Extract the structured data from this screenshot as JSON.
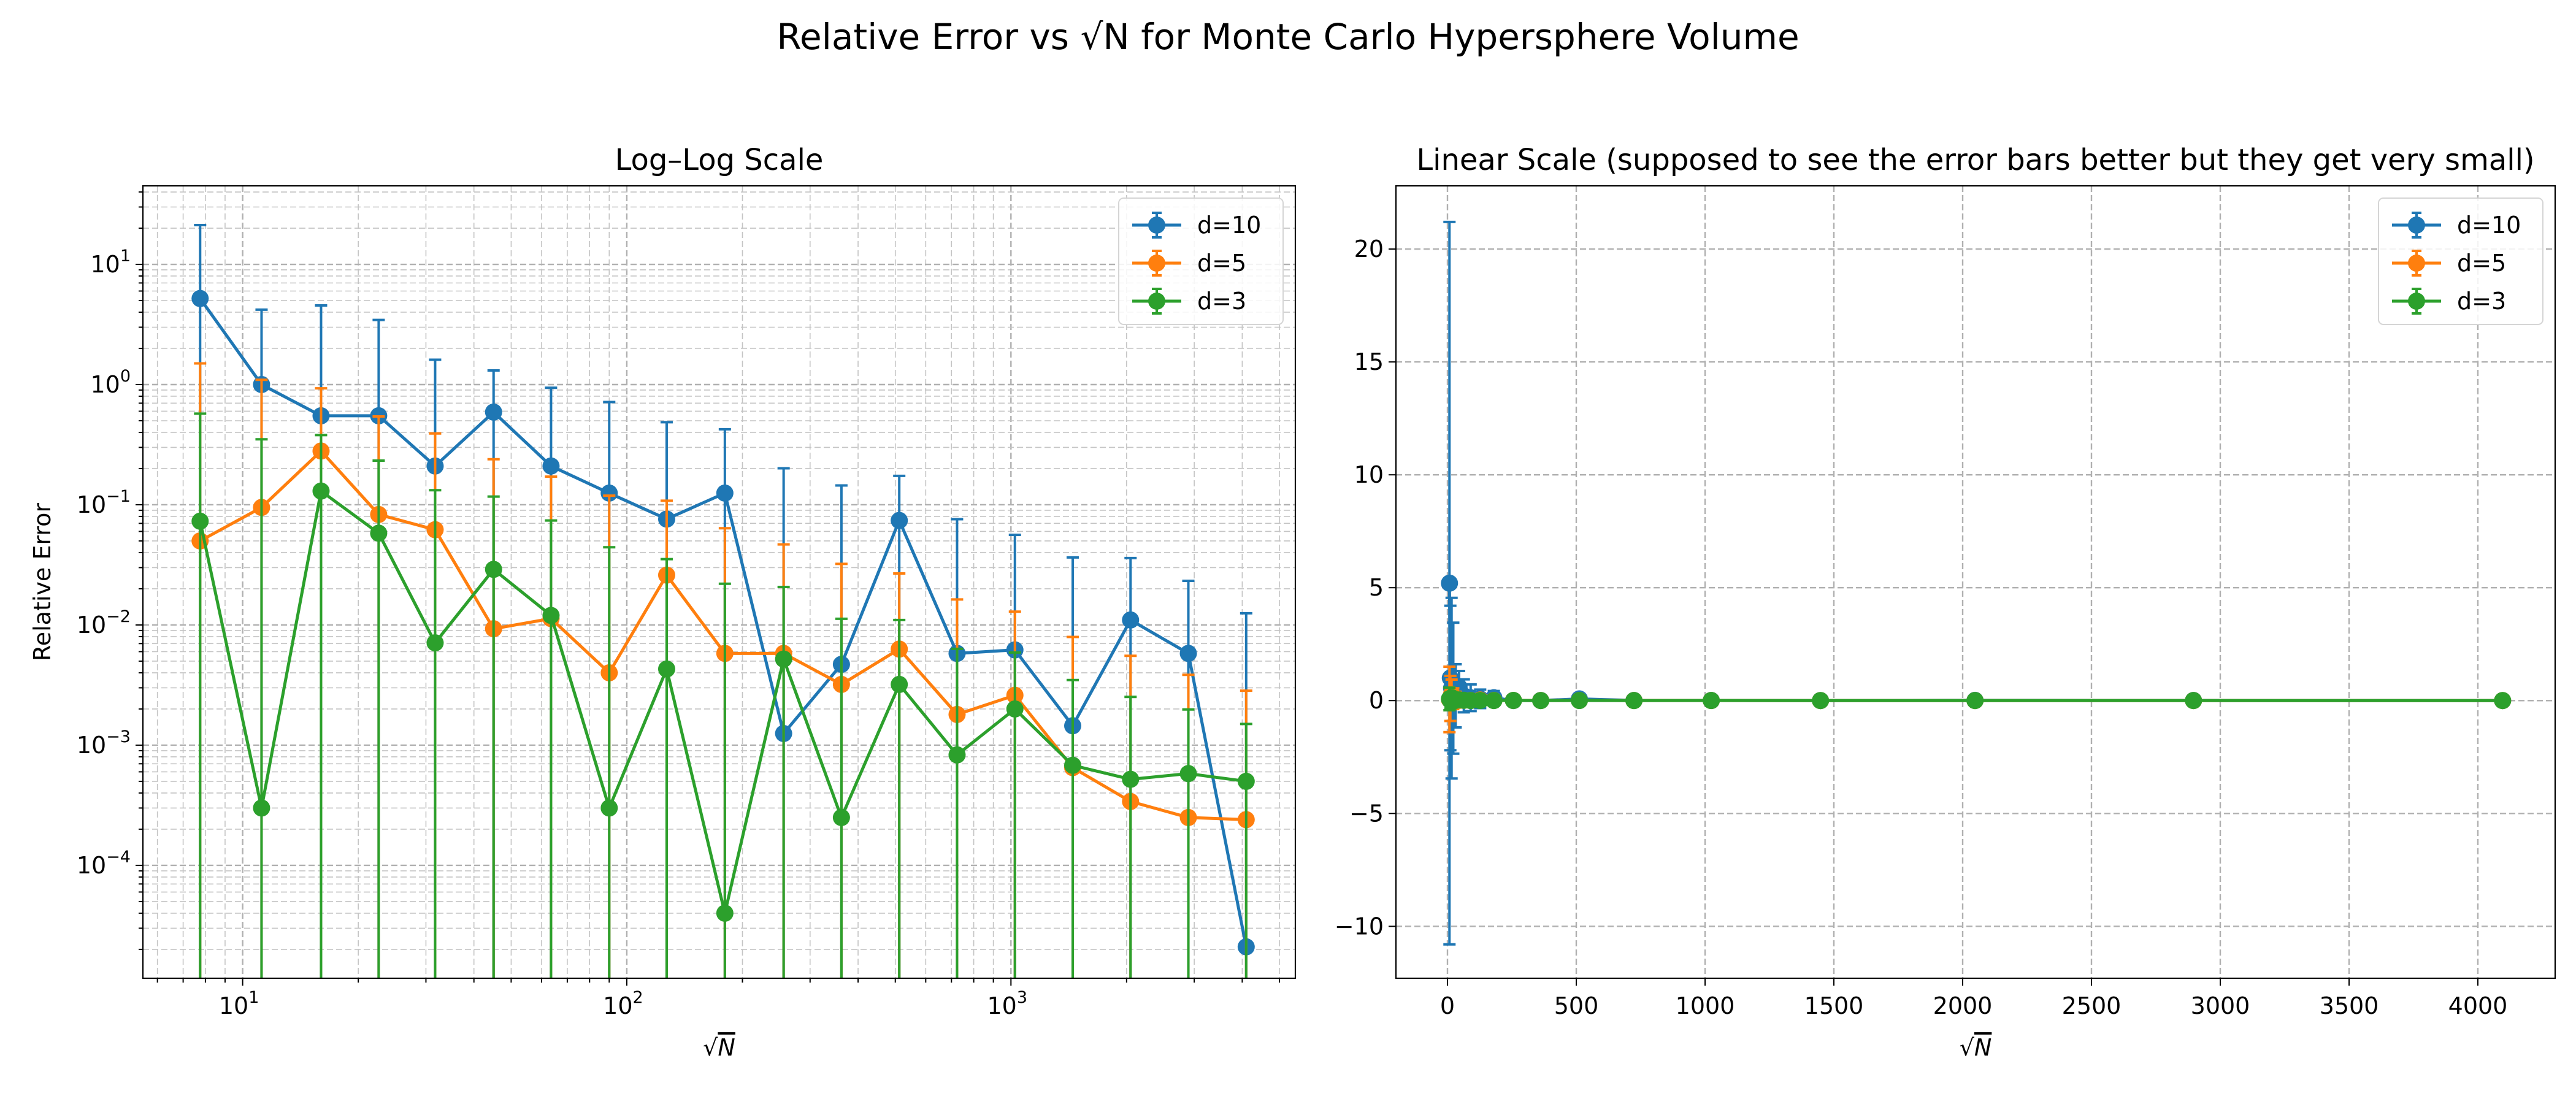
{
  "figure": {
    "title": "Relative Error vs √N for Monte Carlo Hypersphere Volume"
  },
  "chart_data": [
    {
      "type": "line",
      "title": "Log–Log Scale",
      "xlabel": "√N",
      "ylabel": "Relative Error",
      "xscale": "log",
      "yscale": "log",
      "xlim": [
        5.5,
        5500
      ],
      "ylim": [
        1.15e-05,
        45
      ],
      "x_ticks": [
        {
          "v": 10,
          "b": "10",
          "e": "1"
        },
        {
          "v": 100,
          "b": "10",
          "e": "2"
        },
        {
          "v": 1000,
          "b": "10",
          "e": "3"
        }
      ],
      "y_ticks": [
        {
          "v": 0.0001,
          "b": "10",
          "e": "−4"
        },
        {
          "v": 0.001,
          "b": "10",
          "e": "−3"
        },
        {
          "v": 0.01,
          "b": "10",
          "e": "−2"
        },
        {
          "v": 0.1,
          "b": "10",
          "e": "−1"
        },
        {
          "v": 1,
          "b": "10",
          "e": "0"
        },
        {
          "v": 10,
          "b": "10",
          "e": "1"
        }
      ],
      "grid": "both",
      "legend_position": "upper right",
      "legend": [
        "d=10",
        "d=5",
        "d=3"
      ],
      "x": [
        7.75,
        11.2,
        16,
        22.6,
        31.7,
        45,
        63.5,
        90,
        127,
        180,
        256,
        362,
        512,
        724,
        1024,
        1448,
        2048,
        2896,
        4096
      ],
      "series": [
        {
          "name": "d=10",
          "color": "#1f77b4",
          "values": [
            5.2,
            1.0,
            0.55,
            0.55,
            0.21,
            0.59,
            0.21,
            0.125,
            0.076,
            0.125,
            0.00125,
            0.0047,
            0.074,
            0.0058,
            0.0062,
            0.00145,
            0.011,
            0.0058,
            2.1e-05
          ],
          "errors": [
            16,
            3.2,
            4.0,
            2.9,
            1.4,
            0.72,
            0.73,
            0.59,
            0.41,
            0.3,
            0.2,
            0.14,
            0.1,
            0.07,
            0.05,
            0.035,
            0.025,
            0.0175,
            0.0125
          ]
        },
        {
          "name": "d=5",
          "color": "#ff7f0e",
          "values": [
            0.05,
            0.095,
            0.28,
            0.083,
            0.062,
            0.0093,
            0.0113,
            0.004,
            0.026,
            0.0058,
            0.0058,
            0.0032,
            0.0063,
            0.0018,
            0.0026,
            0.00065,
            0.00034,
            0.00025,
            0.00024
          ],
          "errors": [
            1.45,
            1.0,
            0.65,
            0.46,
            0.33,
            0.23,
            0.16,
            0.115,
            0.082,
            0.058,
            0.041,
            0.029,
            0.0205,
            0.0145,
            0.0103,
            0.0073,
            0.0052,
            0.0036,
            0.0026
          ]
        },
        {
          "name": "d=3",
          "color": "#2ca02c",
          "values": [
            0.073,
            0.0003,
            0.13,
            0.058,
            0.0071,
            0.029,
            0.012,
            0.0003,
            0.0043,
            4e-05,
            0.0052,
            0.00025,
            0.0032,
            0.00083,
            0.002,
            0.00068,
            0.00052,
            0.00058,
            0.0005
          ],
          "errors": [
            0.5,
            0.35,
            0.25,
            0.175,
            0.125,
            0.088,
            0.062,
            0.044,
            0.031,
            0.022,
            0.0155,
            0.011,
            0.0078,
            0.0055,
            0.0039,
            0.0028,
            0.002,
            0.0014,
            0.001
          ]
        }
      ]
    },
    {
      "type": "line",
      "title": "Linear Scale (supposed to see the error bars better but they get very small)",
      "xlabel": "√N",
      "ylabel": "",
      "xscale": "linear",
      "yscale": "linear",
      "xlim": [
        -200,
        4300
      ],
      "ylim": [
        -12.3,
        22.8
      ],
      "x_ticks": [
        0,
        500,
        1000,
        1500,
        2000,
        2500,
        3000,
        3500,
        4000
      ],
      "y_ticks": [
        -10,
        -5,
        0,
        5,
        10,
        15,
        20
      ],
      "grid": "major",
      "legend_position": "upper right",
      "legend": [
        "d=10",
        "d=5",
        "d=3"
      ],
      "x": [
        7.75,
        11.2,
        16,
        22.6,
        31.7,
        45,
        63.5,
        90,
        127,
        180,
        256,
        362,
        512,
        724,
        1024,
        1448,
        2048,
        2896,
        4096
      ],
      "series": [
        {
          "name": "d=10",
          "color": "#1f77b4",
          "values": [
            5.2,
            1.0,
            0.55,
            0.55,
            0.21,
            0.59,
            0.21,
            0.125,
            0.076,
            0.125,
            0.00125,
            0.0047,
            0.074,
            0.0058,
            0.0062,
            0.00145,
            0.011,
            0.0058,
            2.1e-05
          ],
          "errors": [
            16,
            3.2,
            4.0,
            2.9,
            1.4,
            0.72,
            0.73,
            0.59,
            0.41,
            0.3,
            0.2,
            0.14,
            0.1,
            0.07,
            0.05,
            0.035,
            0.025,
            0.0175,
            0.0125
          ]
        },
        {
          "name": "d=5",
          "color": "#ff7f0e",
          "values": [
            0.05,
            0.095,
            0.28,
            0.083,
            0.062,
            0.0093,
            0.0113,
            0.004,
            0.026,
            0.0058,
            0.0058,
            0.0032,
            0.0063,
            0.0018,
            0.0026,
            0.00065,
            0.00034,
            0.00025,
            0.00024
          ],
          "errors": [
            1.45,
            1.0,
            0.65,
            0.46,
            0.33,
            0.23,
            0.16,
            0.115,
            0.082,
            0.058,
            0.041,
            0.029,
            0.0205,
            0.0145,
            0.0103,
            0.0073,
            0.0052,
            0.0036,
            0.0026
          ]
        },
        {
          "name": "d=3",
          "color": "#2ca02c",
          "values": [
            0.073,
            0.0003,
            0.13,
            0.058,
            0.0071,
            0.029,
            0.012,
            0.0003,
            0.0043,
            4e-05,
            0.0052,
            0.00025,
            0.0032,
            0.00083,
            0.002,
            0.00068,
            0.00052,
            0.00058,
            0.0005
          ],
          "errors": [
            0.5,
            0.35,
            0.25,
            0.175,
            0.125,
            0.088,
            0.062,
            0.044,
            0.031,
            0.022,
            0.0155,
            0.011,
            0.0078,
            0.0055,
            0.0039,
            0.0028,
            0.002,
            0.0014,
            0.001
          ]
        }
      ]
    }
  ]
}
